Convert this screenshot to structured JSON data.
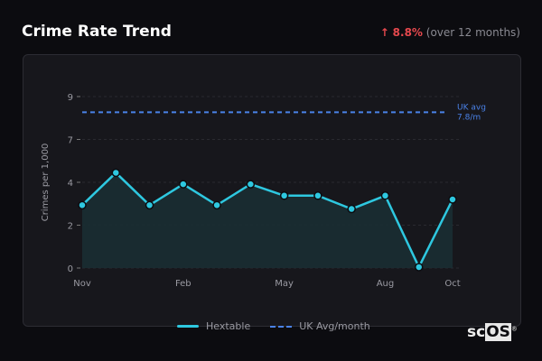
{
  "header": {
    "title": "Crime Rate Trend",
    "change_arrow": "↑",
    "change_value": "8.8%",
    "change_note": "(over 12 months)"
  },
  "chart_data": {
    "type": "area",
    "title": "Crime Rate Trend",
    "ylabel": "Crimes per 1,000",
    "xlabel": "",
    "ylim": [
      0,
      9
    ],
    "yticks": [
      {
        "value": 0,
        "label": "0"
      },
      {
        "value": 2.25,
        "label": "2"
      },
      {
        "value": 4.5,
        "label": "4"
      },
      {
        "value": 6.75,
        "label": "7"
      },
      {
        "value": 9,
        "label": "9"
      }
    ],
    "x": [
      "Nov",
      "Dec",
      "Jan",
      "Feb",
      "Mar",
      "Apr",
      "May",
      "Jun",
      "Jul",
      "Aug",
      "Sep",
      "Oct"
    ],
    "xtick_labels": [
      "Nov",
      "Feb",
      "May",
      "Aug",
      "Oct"
    ],
    "grid": true,
    "series": [
      {
        "name": "Hextable",
        "color": "#2ec8e0",
        "values": [
          3.3,
          5.0,
          3.3,
          4.4,
          3.3,
          4.4,
          3.8,
          3.8,
          3.1,
          3.8,
          0.05,
          3.6
        ]
      }
    ],
    "reference_line": {
      "name": "UK Avg/month",
      "value": 7.8,
      "label_line1": "UK avg",
      "label_line2": "7.8/m",
      "color": "#4a82e8"
    },
    "legend_placement": "bottom"
  },
  "legend": {
    "series1": "Hextable",
    "series2": "UK Avg/month"
  },
  "logo": {
    "text_plain": "sc",
    "text_boxed": "OS",
    "mark": "®"
  }
}
